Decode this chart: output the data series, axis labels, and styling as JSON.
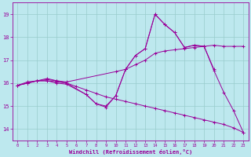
{
  "xlabel": "Windchill (Refroidissement éolien,°C)",
  "xlim": [
    -0.5,
    23.5
  ],
  "ylim": [
    13.5,
    19.5
  ],
  "yticks": [
    14,
    15,
    16,
    17,
    18,
    19
  ],
  "xticks": [
    0,
    1,
    2,
    3,
    4,
    5,
    6,
    7,
    8,
    9,
    10,
    11,
    12,
    13,
    14,
    15,
    16,
    17,
    18,
    19,
    20,
    21,
    22,
    23
  ],
  "bg_color": "#bde8ee",
  "line_color": "#990099",
  "grid_color": "#99cccc",
  "lines": [
    {
      "x": [
        0,
        1,
        2,
        3,
        4,
        5,
        10,
        11,
        12,
        13,
        14,
        15,
        16,
        17,
        18,
        19,
        20,
        21,
        22,
        23
      ],
      "y": [
        15.9,
        16.0,
        16.1,
        16.15,
        16.1,
        16.05,
        16.5,
        16.6,
        16.8,
        17.0,
        17.3,
        17.4,
        17.45,
        17.5,
        17.55,
        17.6,
        17.65,
        17.6,
        17.6,
        17.6
      ]
    },
    {
      "x": [
        0,
        1,
        2,
        3,
        4,
        5,
        7,
        8,
        9,
        10,
        11,
        12,
        13,
        14,
        15,
        16,
        17,
        18,
        19,
        20
      ],
      "y": [
        15.9,
        16.05,
        16.1,
        16.2,
        16.1,
        16.0,
        15.5,
        15.1,
        15.0,
        15.45,
        16.6,
        17.2,
        17.5,
        19.0,
        18.55,
        18.2,
        17.55,
        17.65,
        17.6,
        16.6
      ]
    },
    {
      "x": [
        0,
        1,
        2,
        3,
        4,
        5,
        7,
        8,
        9,
        10,
        11,
        12,
        13,
        14,
        15,
        16,
        17,
        18,
        19,
        20,
        21,
        22,
        23
      ],
      "y": [
        15.9,
        16.0,
        16.1,
        16.1,
        16.0,
        15.95,
        15.5,
        15.1,
        14.95,
        15.45,
        16.6,
        17.2,
        17.5,
        19.0,
        18.55,
        18.2,
        17.55,
        17.65,
        17.6,
        16.55,
        15.6,
        14.8,
        13.85
      ]
    },
    {
      "x": [
        0,
        1,
        2,
        3,
        4,
        5,
        6,
        7,
        8,
        9,
        10,
        11,
        12,
        13,
        14,
        15,
        16,
        17,
        18,
        19,
        20,
        21,
        22,
        23
      ],
      "y": [
        15.9,
        16.0,
        16.1,
        16.1,
        16.05,
        16.0,
        15.85,
        15.7,
        15.55,
        15.4,
        15.3,
        15.2,
        15.1,
        15.0,
        14.9,
        14.8,
        14.7,
        14.6,
        14.5,
        14.4,
        14.3,
        14.2,
        14.05,
        13.85
      ]
    }
  ]
}
